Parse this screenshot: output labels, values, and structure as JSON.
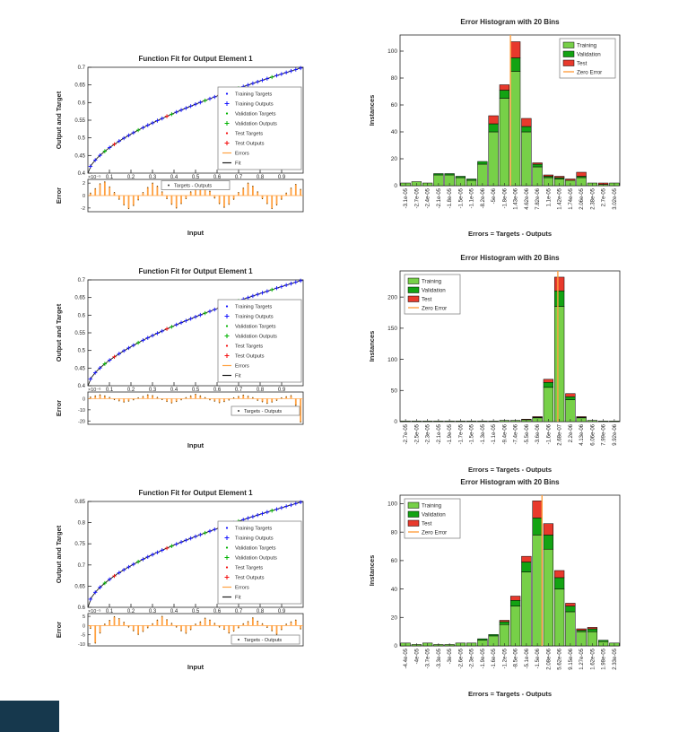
{
  "colors": {
    "background": "#FFFFFF",
    "axis": "#262626",
    "blue": "#1414FF",
    "green": "#00B300",
    "red": "#F50D0D",
    "orange": "#FFA040",
    "fit_line": "#1A1A1A",
    "bar_training": "#77D048",
    "bar_validation": "#13A313",
    "bar_test": "#E8392C",
    "zero_error": "#FFA040",
    "legend_border": "#777777",
    "corner_block": "#16384D"
  },
  "chart_data": {
    "fit_plots": [
      {
        "type": "line",
        "title": "Function Fit for Output Element 1",
        "ylabel": "Output and Target",
        "xlabel": "Input",
        "error_ylabel": "Error",
        "ylim": [
          0.4,
          0.7
        ],
        "yticks": [
          0.4,
          0.45,
          0.5,
          0.55,
          0.6,
          0.65,
          0.7
        ],
        "xticks": [
          0.1,
          0.2,
          0.3,
          0.4,
          0.5,
          0.6,
          0.7,
          0.8,
          0.9
        ],
        "curve": {
          "start": 0.4,
          "end": 0.7,
          "power": 0.62
        },
        "n_points": 45,
        "legend": [
          "Training Targets",
          "Training Outputs",
          "Validation Targets",
          "Validation Outputs",
          "Test Targets",
          "Test Outputs",
          "Errors",
          "Fit"
        ],
        "error_exp": "×10⁻⁵",
        "error_ylim": [
          -2.6,
          2.6
        ],
        "error_yticks": [
          2,
          0,
          -2
        ],
        "error_legend": "Targets - Outputs",
        "error_legend_pos": "top",
        "error_values": [
          0.4,
          1.1,
          1.9,
          2.2,
          1.4,
          0.5,
          -0.6,
          -1.5,
          -2.1,
          -1.6,
          -0.7,
          0.5,
          1.3,
          2.0,
          1.5,
          0.6,
          -0.5,
          -1.4,
          -2.0,
          -1.3,
          -0.5,
          0.6,
          1.4,
          2.1,
          1.6,
          0.7,
          -0.4,
          -1.3,
          -1.9,
          -1.4,
          -0.6,
          0.5,
          1.2,
          2.0,
          1.5,
          0.6,
          -0.5,
          -1.3,
          -2.1,
          -1.5,
          -0.6,
          0.4,
          1.2,
          1.8,
          1.0
        ]
      },
      {
        "type": "line",
        "title": "Function Fit for Output Element 1",
        "ylabel": "Output and Target",
        "xlabel": "Input",
        "error_ylabel": "Error",
        "ylim": [
          0.4,
          0.7
        ],
        "yticks": [
          0.4,
          0.45,
          0.5,
          0.55,
          0.6,
          0.65,
          0.7
        ],
        "xticks": [
          0.1,
          0.2,
          0.3,
          0.4,
          0.5,
          0.6,
          0.7,
          0.8,
          0.9
        ],
        "curve": {
          "start": 0.4,
          "end": 0.7,
          "power": 0.62
        },
        "n_points": 45,
        "legend": [
          "Training Targets",
          "Training Outputs",
          "Validation Targets",
          "Validation Outputs",
          "Test Targets",
          "Test Outputs",
          "Errors",
          "Fit"
        ],
        "error_exp": "×10⁻⁶",
        "error_ylim": [
          -23,
          6
        ],
        "error_yticks": [
          0,
          -10,
          -20
        ],
        "error_legend": "Targets - Outputs",
        "error_legend_pos": "right",
        "error_values": [
          1.5,
          2.5,
          3.5,
          2.5,
          1.2,
          -0.8,
          -2,
          -3,
          -2.2,
          -1,
          0.8,
          2,
          3.5,
          2.8,
          1.2,
          -0.8,
          -2.5,
          -3.8,
          -2.5,
          -1,
          1,
          2.5,
          4,
          2.5,
          1,
          -1,
          -2.2,
          -3.6,
          -2.6,
          -1.2,
          0.8,
          2,
          3.2,
          2.2,
          1,
          -1.5,
          -2.8,
          -4.2,
          -3,
          -1.5,
          0.8,
          1.8,
          2.8,
          -6,
          -21
        ]
      },
      {
        "type": "line",
        "title": "Function Fit for Output Element 1",
        "ylabel": "Output and Target",
        "xlabel": "Input",
        "error_ylabel": "Error",
        "ylim": [
          0.6,
          0.85
        ],
        "yticks": [
          0.6,
          0.65,
          0.7,
          0.75,
          0.8,
          0.85
        ],
        "xticks": [
          0.1,
          0.2,
          0.3,
          0.4,
          0.5,
          0.6,
          0.7,
          0.8,
          0.9
        ],
        "curve": {
          "start": 0.6,
          "end": 0.85,
          "power": 0.58
        },
        "n_points": 45,
        "legend": [
          "Training Targets",
          "Training Outputs",
          "Validation Targets",
          "Validation Outputs",
          "Test Targets",
          "Test Outputs",
          "Errors",
          "Fit"
        ],
        "error_exp": "×10⁻⁵",
        "error_ylim": [
          -11,
          6.5
        ],
        "error_yticks": [
          5,
          0,
          -5,
          -10
        ],
        "error_legend": "Targets - Outputs",
        "error_legend_pos": "bottom-right",
        "error_values": [
          -1.5,
          -9.5,
          -4,
          0.8,
          2.8,
          4.8,
          3.8,
          1.8,
          -0.8,
          -2.8,
          -4.8,
          -3.2,
          -1.2,
          1,
          3,
          5,
          3.2,
          1.2,
          -0.8,
          -2.8,
          -4.2,
          -2.2,
          0.8,
          2,
          4,
          3,
          1.2,
          -0.8,
          -2,
          -4,
          -3,
          -1.2,
          1,
          2.2,
          4.2,
          2.4,
          1,
          -1,
          -2.8,
          -4.8,
          -2.2,
          0.8,
          2,
          3,
          -1.8
        ]
      }
    ],
    "histograms": [
      {
        "type": "bar",
        "title": "Error Histogram with 20 Bins",
        "ylabel": "Instances",
        "xlabel": "Errors = Targets - Outputs",
        "bins": [
          "-3.1e-05",
          "-2.7e-05",
          "-2.4e-05",
          "-2.1e-05",
          "-1.8e-05",
          "-1.5e-05",
          "-1.1e-05",
          "-8.2e-06",
          "-5e-06",
          "-1.8e-06",
          "1.43e-06",
          "4.62e-06",
          "7.82e-06",
          "1.1e-05",
          "1.42e-05",
          "1.74e-05",
          "2.06e-05",
          "2.38e-05",
          "2.7e-05",
          "3.02e-05"
        ],
        "series": [
          {
            "name": "Training",
            "values": [
              2,
              3,
              2,
              8,
              8,
              6,
              4,
              16,
              40,
              65,
              85,
              40,
              14,
              6,
              5,
              4,
              6,
              2,
              1,
              2
            ]
          },
          {
            "name": "Validation",
            "values": [
              0,
              0,
              0,
              1,
              1,
              1,
              1,
              2,
              6,
              6,
              10,
              4,
              2,
              1,
              1,
              0,
              1,
              0,
              0,
              0
            ]
          },
          {
            "name": "Test",
            "values": [
              0,
              0,
              0,
              0,
              0,
              0,
              0,
              0,
              6,
              4,
              12,
              6,
              1,
              1,
              1,
              1,
              3,
              0,
              1,
              0
            ]
          }
        ],
        "zero_line_label": "Zero Error",
        "zero_x": 9.55,
        "ylim": 112,
        "yticks": [
          0,
          20,
          40,
          60,
          80,
          100
        ],
        "legend_pos": "right"
      },
      {
        "type": "bar",
        "title": "Error Histogram with 20 Bins",
        "ylabel": "Instances",
        "xlabel": "Errors = Targets - Outputs",
        "bins": [
          "-2.7e-05",
          "-2.5e-05",
          "-2.3e-05",
          "-2.1e-05",
          "-1.9e-05",
          "-1.7e-05",
          "-1.5e-05",
          "-1.3e-05",
          "-1.1e-05",
          "-9.4e-06",
          "-7.4e-06",
          "-5.5e-06",
          "-3.6e-06",
          "-1.6e-06",
          "2.68e-07",
          "2.2e-06",
          "4.13e-06",
          "6.06e-06",
          "7.99e-06",
          "9.92e-06"
        ],
        "series": [
          {
            "name": "Training",
            "values": [
              1,
              1,
              1,
              1,
              1,
              1,
              1,
              1,
              1,
              2,
              2,
              3,
              6,
              55,
              185,
              35,
              6,
              2,
              1,
              1
            ]
          },
          {
            "name": "Validation",
            "values": [
              0,
              0,
              0,
              0,
              0,
              0,
              0,
              0,
              0,
              0,
              0,
              0,
              1,
              8,
              25,
              5,
              1,
              0,
              0,
              0
            ]
          },
          {
            "name": "Test",
            "values": [
              0,
              0,
              0,
              0,
              0,
              0,
              0,
              0,
              0,
              0,
              0,
              1,
              1,
              5,
              22,
              5,
              1,
              0,
              0,
              0
            ]
          }
        ],
        "zero_line_label": "Zero Error",
        "zero_x": 13.86,
        "ylim": 242,
        "yticks": [
          0,
          50,
          100,
          150,
          200
        ],
        "legend_pos": "left"
      },
      {
        "type": "bar",
        "title": "Error Histogram with 20 Bins",
        "ylabel": "Instances",
        "xlabel": "Errors = Targets - Outputs",
        "bins": [
          "-4.4e-05",
          "-4e-05",
          "-3.7e-05",
          "-3.3e-05",
          "-3e-05",
          "-2.6e-05",
          "-2.3e-05",
          "-1.9e-05",
          "-1.6e-05",
          "-1.2e-05",
          "-8.5e-06",
          "-5.1e-06",
          "-1.5e-06",
          "2.08e-06",
          "5.62e-06",
          "9.15e-06",
          "1.27e-05",
          "1.62e-05",
          "1.98e-05",
          "2.33e-05"
        ],
        "series": [
          {
            "name": "Training",
            "values": [
              2,
              1,
              2,
              1,
              1,
              2,
              2,
              4,
              7,
              15,
              28,
              52,
              78,
              68,
              40,
              24,
              10,
              10,
              3,
              2
            ]
          },
          {
            "name": "Validation",
            "values": [
              0,
              0,
              0,
              0,
              0,
              0,
              0,
              1,
              1,
              2,
              4,
              7,
              12,
              10,
              8,
              4,
              1,
              2,
              1,
              0
            ]
          },
          {
            "name": "Test",
            "values": [
              0,
              0,
              0,
              0,
              0,
              0,
              0,
              0,
              0,
              1,
              3,
              4,
              12,
              8,
              5,
              2,
              1,
              1,
              0,
              0
            ]
          }
        ],
        "zero_line_label": "Zero Error",
        "zero_x": 12.42,
        "ylim": 106,
        "yticks": [
          0,
          20,
          40,
          60,
          80,
          100
        ],
        "legend_pos": "left"
      }
    ]
  }
}
